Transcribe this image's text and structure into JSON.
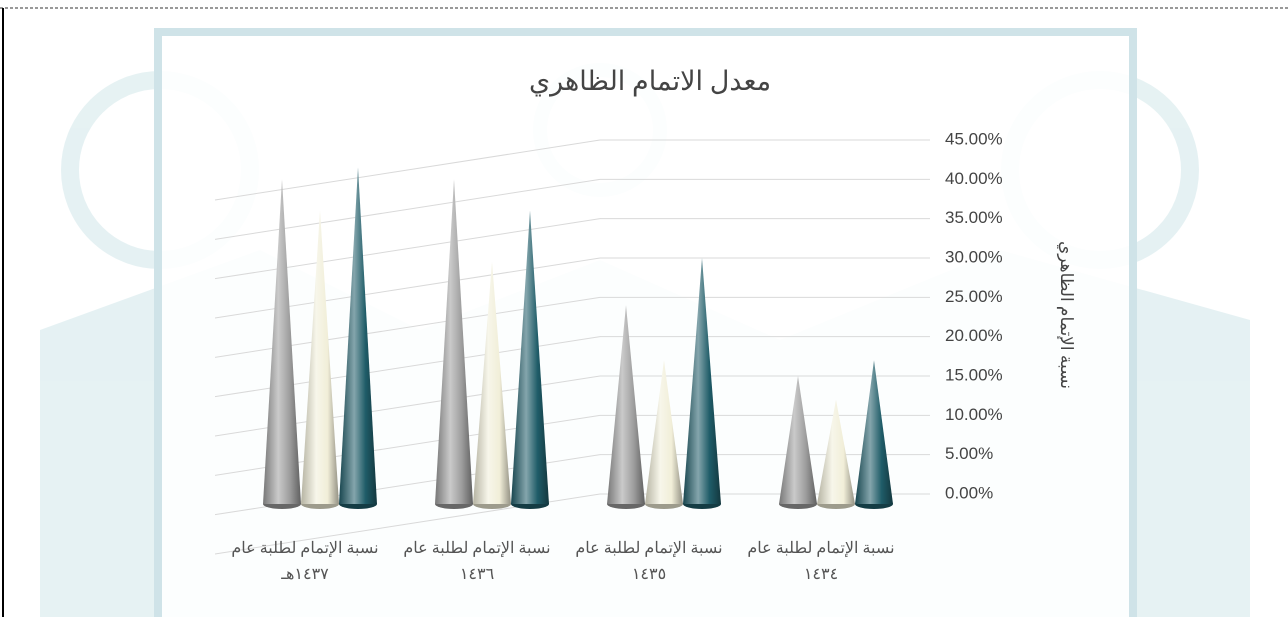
{
  "chart_data": {
    "type": "cone",
    "title": "معدل الاتمام الظاهري",
    "y_label": "نسبة الإتمام الظاهري",
    "categories": [
      "نسبة الإتمام لطلبة عام ١٤٣٧هـ",
      "نسبة الإتمام لطلبة عام ١٤٣٦",
      "نسبة الإتمام لطلبة عام ١٤٣٥",
      "نسبة الإتمام لطلبة عام ١٤٣٤"
    ],
    "series": [
      {
        "color": "#9e9e9e",
        "values": [
          40,
          40,
          24,
          15
        ]
      },
      {
        "color": "#f1eed8",
        "values": [
          36,
          29.5,
          17,
          12
        ]
      },
      {
        "color": "#1f5c68",
        "values": [
          41.5,
          36,
          30,
          17
        ]
      }
    ],
    "ylim": [
      0,
      45
    ],
    "yticks": [
      {
        "value": 0,
        "label": "0.00%"
      },
      {
        "value": 5,
        "label": "5.00%"
      },
      {
        "value": 10,
        "label": "10.00%"
      },
      {
        "value": 15,
        "label": "15.00%"
      },
      {
        "value": 20,
        "label": "20.00%"
      },
      {
        "value": 25,
        "label": "25.00%"
      },
      {
        "value": 30,
        "label": "30.00%"
      },
      {
        "value": 35,
        "label": "35.00%"
      },
      {
        "value": 40,
        "label": "40.00%"
      },
      {
        "value": 45,
        "label": "45.00%"
      }
    ],
    "grid": true
  }
}
